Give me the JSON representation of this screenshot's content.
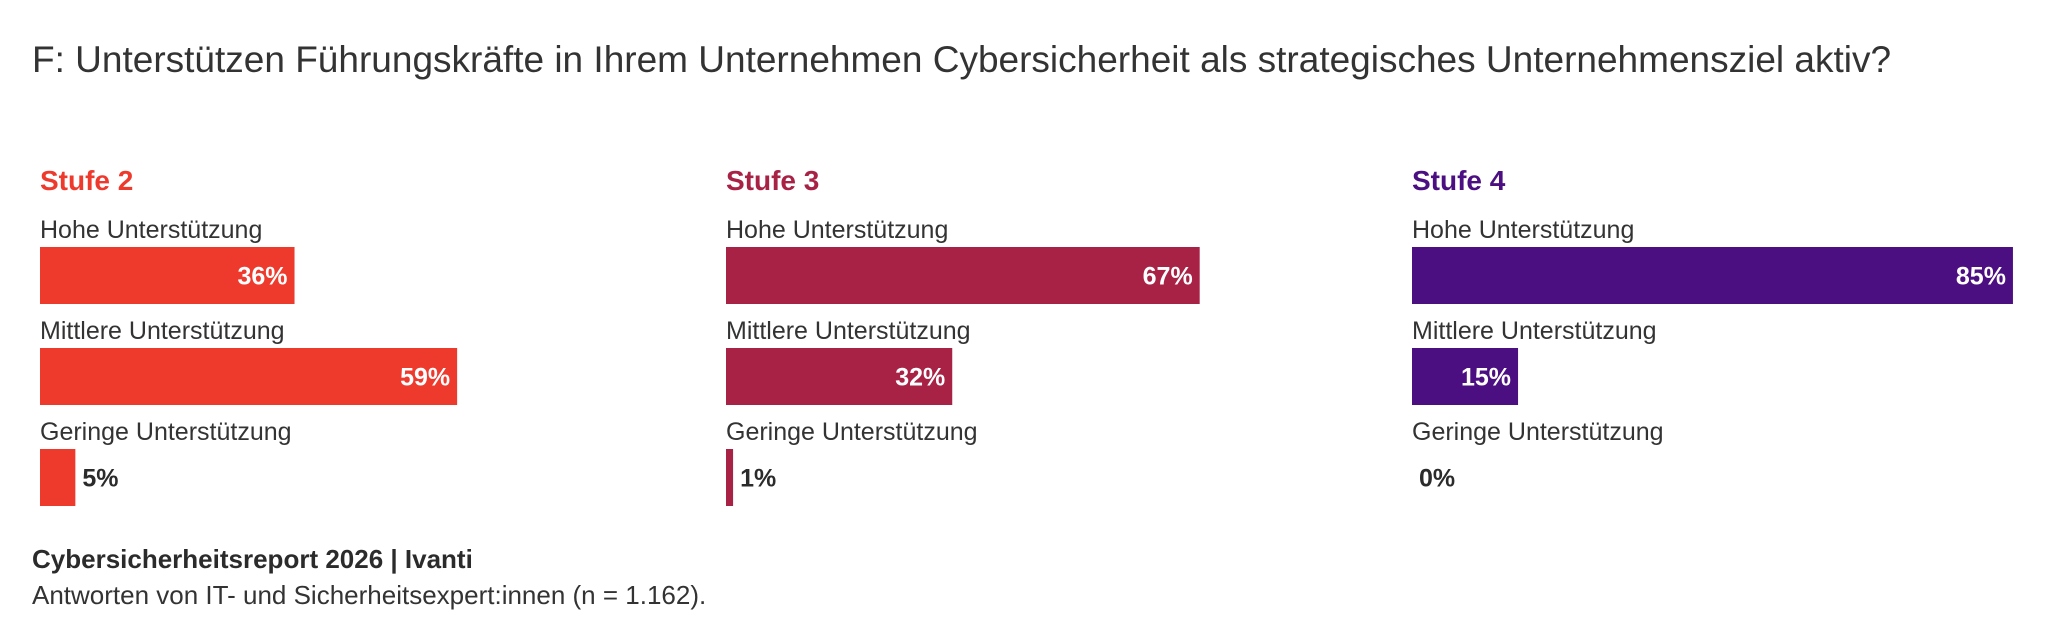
{
  "title": "F: Unterstützen Führungskräfte in Ihrem Unternehmen Cybersicherheit als strategisches Unternehmensziel aktiv?",
  "footer": {
    "source": "Cybersicherheitsreport 2026 | Ivanti",
    "note": "Antworten von IT- und Sicherheitsexpert:innen (n = 1.162)."
  },
  "chart_data": [
    {
      "type": "bar",
      "panel_title": "Stufe 2",
      "color": "#ee3a2c",
      "categories": [
        "Hohe Unterstützung",
        "Mittlere Unterstützung",
        "Geringe Unterstützung"
      ],
      "values": [
        36,
        59,
        5
      ],
      "labels": [
        "36%",
        "59%",
        "5%"
      ],
      "xlim": [
        0,
        100
      ]
    },
    {
      "type": "bar",
      "panel_title": "Stufe 3",
      "color": "#a82245",
      "categories": [
        "Hohe Unterstützung",
        "Mittlere Unterstützung",
        "Geringe Unterstützung"
      ],
      "values": [
        67,
        32,
        1
      ],
      "labels": [
        "67%",
        "32%",
        "1%"
      ],
      "xlim": [
        0,
        100
      ]
    },
    {
      "type": "bar",
      "panel_title": "Stufe 4",
      "color": "#4b0f82",
      "categories": [
        "Hohe Unterstützung",
        "Mittlere Unterstützung",
        "Geringe Unterstützung"
      ],
      "values": [
        85,
        15,
        0
      ],
      "labels": [
        "85%",
        "15%",
        "0%"
      ],
      "xlim": [
        0,
        100
      ]
    }
  ]
}
